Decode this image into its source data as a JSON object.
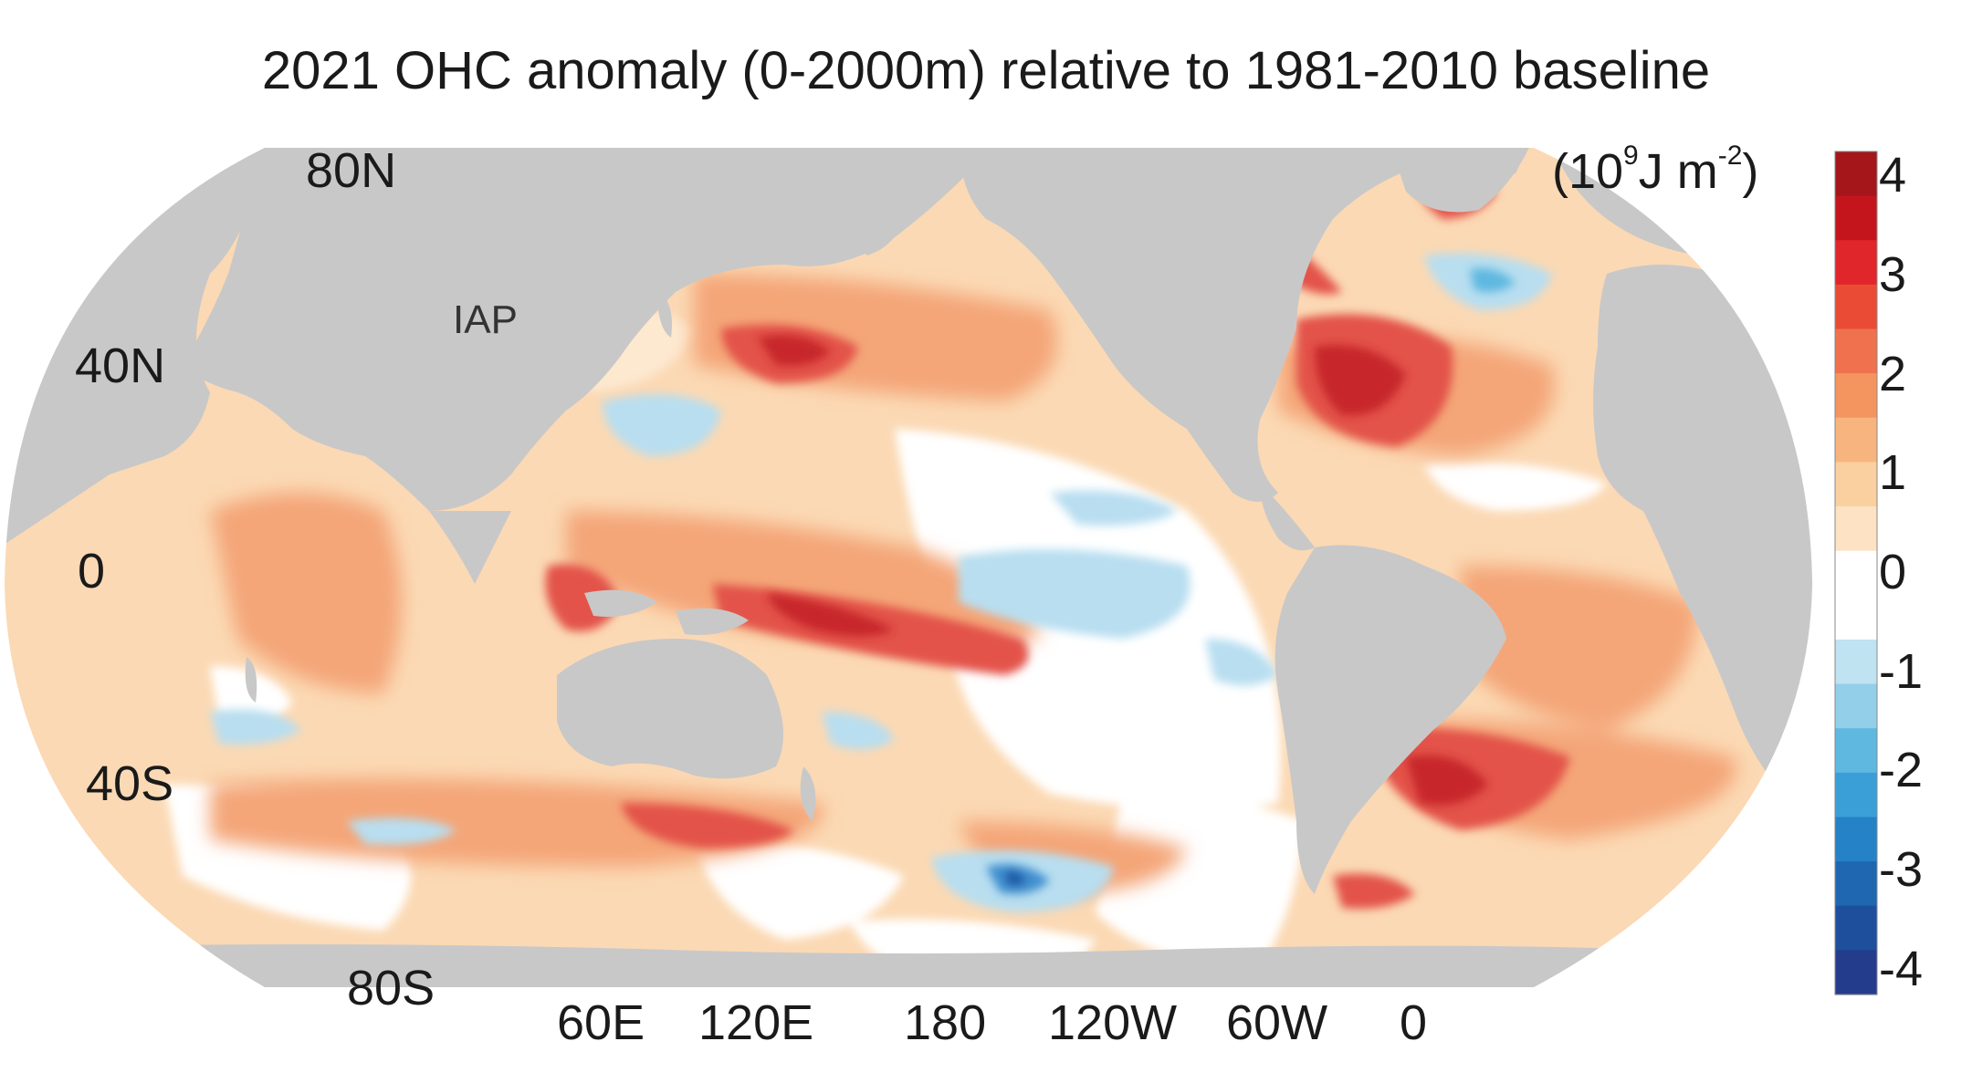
{
  "title": "2021 OHC anomaly (0-2000m) relative to 1981-2010 baseline",
  "source_label": "IAP",
  "units": {
    "base": "(10",
    "exp1": "9",
    "mid": "J m",
    "exp2": "-2",
    "end": ")"
  },
  "latitude_labels": [
    "80N",
    "40N",
    "0",
    "40S",
    "80S"
  ],
  "longitude_labels": [
    "60E",
    "120E",
    "180",
    "120W",
    "60W",
    "0"
  ],
  "colorbar": {
    "min": -4.25,
    "max": 4.25,
    "tick_labels": [
      "4",
      "3",
      "2",
      "1",
      "0",
      "-1",
      "-2",
      "-3",
      "-4"
    ],
    "bands_top_to_bottom": [
      "#a5161a",
      "#c4151c",
      "#e0262a",
      "#ea4b34",
      "#f0714e",
      "#f4955f",
      "#f8b47f",
      "#fbd0a1",
      "#fde3c4",
      "#ffffff",
      "#ffffff",
      "#bfe3f1",
      "#93cfe8",
      "#5fb8e0",
      "#3a9fd6",
      "#2582c6",
      "#1f67b1",
      "#1d4f9c",
      "#243c8c"
    ]
  },
  "map": {
    "projection": "Robinson, Pacific-centred (20E central meridian)",
    "variable": "Ocean heat content anomaly 0-2000 m, 2021",
    "colors": {
      "land": "#c8c8c8",
      "ocean_base": "#fbd9b4",
      "weak_warm": "#fde8d0",
      "near_zero": "#ffffff",
      "warm": "#f4a678",
      "strong_warm": "#e3524a",
      "very_strong_warm": "#c7252b",
      "cool": "#b8def0",
      "strong_cool": "#3f8fcf",
      "very_strong_cool": "#1f5aa8"
    }
  }
}
